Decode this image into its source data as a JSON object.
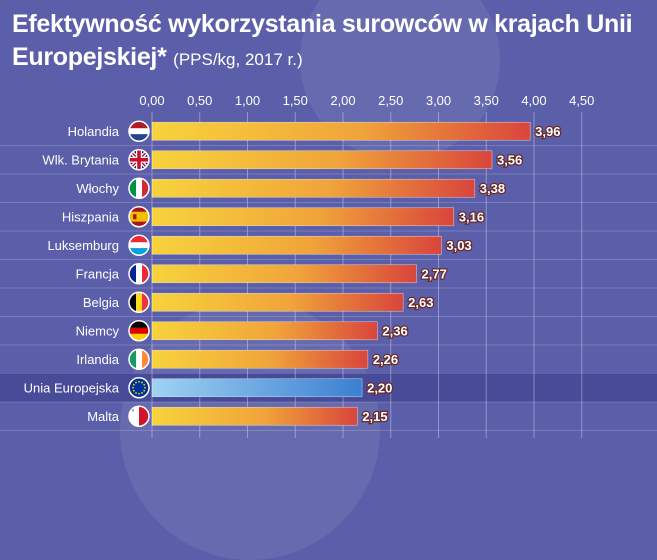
{
  "title": {
    "main": "Efektywność wykorzystania surowców w krajach Unii Europejskiej*",
    "subtitle": "(PPS/kg, 2017 r.)"
  },
  "colors": {
    "background": "#5b5fa9",
    "bar_start": "#f7d33c",
    "bar_end": "#d9453c",
    "eu_bar_start": "#9fd3f3",
    "eu_bar_end": "#3b7fd1",
    "highlight_row": "#484b98"
  },
  "chart_data": {
    "type": "bar",
    "orientation": "horizontal",
    "xlim": [
      0,
      4.5
    ],
    "x_ticks": [
      "0,00",
      "0,50",
      "1,00",
      "1,50",
      "2,00",
      "2,50",
      "3,00",
      "3,50",
      "4,00",
      "4,50"
    ],
    "x_tick_values": [
      0,
      0.5,
      1,
      1.5,
      2,
      2.5,
      3,
      3.5,
      4,
      4.5
    ],
    "grid": true,
    "categories": [
      "Holandia",
      "Wlk. Brytania",
      "Włochy",
      "Hiszpania",
      "Luksemburg",
      "Francja",
      "Belgia",
      "Niemcy",
      "Irlandia",
      "Unia Europejska",
      "Malta"
    ],
    "values": [
      3.96,
      3.56,
      3.38,
      3.16,
      3.03,
      2.77,
      2.63,
      2.36,
      2.26,
      2.2,
      2.15
    ],
    "value_labels": [
      "3,96",
      "3,56",
      "3,38",
      "3,16",
      "3,03",
      "2,77",
      "2,63",
      "2,36",
      "2,26",
      "2,20",
      "2,15"
    ],
    "flag_icons": [
      "flag-netherlands",
      "flag-united-kingdom",
      "flag-italy",
      "flag-spain",
      "flag-luxembourg",
      "flag-france",
      "flag-belgium",
      "flag-germany",
      "flag-ireland",
      "flag-european-union",
      "flag-malta"
    ],
    "highlight": "Unia Europejska"
  }
}
